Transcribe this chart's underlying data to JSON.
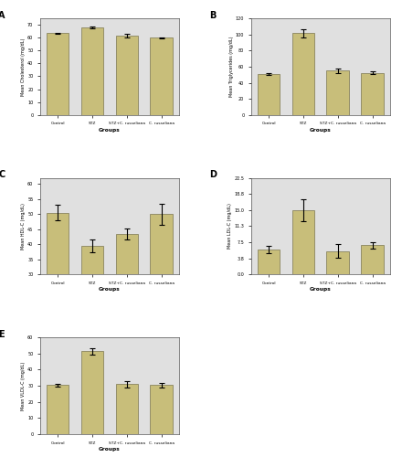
{
  "categories": [
    "Control",
    "STZ",
    "STZ+C. russeliana",
    "C. russeliana"
  ],
  "bar_color": "#C8BE7A",
  "bar_edge_color": "#7A7650",
  "background_color": "#E0E0E0",
  "figure_background": "#FFFFFF",
  "A": {
    "title": "A",
    "ylabel": "Mean Cholesterol (mg/dL)",
    "xlabel": "Groups",
    "values": [
      63.5,
      68.0,
      61.5,
      59.8
    ],
    "errors": [
      0.5,
      0.5,
      1.2,
      0.4
    ],
    "ylim": [
      0,
      75
    ],
    "yticks": [
      0,
      10,
      20,
      30,
      40,
      50,
      60,
      70
    ]
  },
  "B": {
    "title": "B",
    "ylabel": "Mean Triglycerides (mg/dL)",
    "xlabel": "Groups",
    "values": [
      51.0,
      101.5,
      55.0,
      52.5
    ],
    "errors": [
      1.5,
      5.0,
      3.0,
      2.0
    ],
    "ylim": [
      0,
      120
    ],
    "yticks": [
      0,
      20,
      40,
      60,
      80,
      100,
      120
    ]
  },
  "C": {
    "title": "C",
    "ylabel": "Mean HDL-C (mg/dL)",
    "xlabel": "Groups",
    "values": [
      50.5,
      39.5,
      43.5,
      50.0
    ],
    "errors": [
      2.5,
      2.0,
      1.8,
      3.5
    ],
    "ylim": [
      30.0,
      62.0
    ],
    "yticks": [
      30.0,
      35.0,
      40.0,
      45.0,
      50.0,
      55.0,
      60.0
    ]
  },
  "D": {
    "title": "D",
    "ylabel": "Mean LDL-C (mg/dL)",
    "xlabel": "Groups",
    "values": [
      5.8,
      15.0,
      5.5,
      6.8
    ],
    "errors": [
      0.8,
      2.5,
      1.5,
      0.8
    ],
    "ylim": [
      0.0,
      22.0
    ],
    "yticks": [
      0.0,
      3.8,
      7.5,
      11.3,
      15.0,
      18.8,
      22.5
    ]
  },
  "E": {
    "title": "E",
    "ylabel": "Mean VLDL-C (mg/dL)",
    "xlabel": "Groups",
    "values": [
      30.5,
      51.5,
      31.0,
      30.5
    ],
    "errors": [
      0.8,
      2.0,
      2.0,
      1.5
    ],
    "ylim": [
      0.0,
      60.0
    ],
    "yticks": [
      0.0,
      10.0,
      20.0,
      30.0,
      40.0,
      50.0,
      60.0
    ]
  }
}
